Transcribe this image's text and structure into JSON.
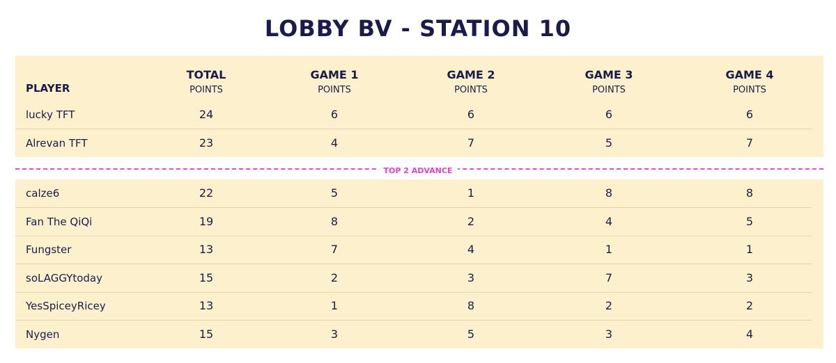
{
  "title": "LOBBY BV - STATION 10",
  "table": {
    "header": {
      "player": "PLAYER",
      "columns": [
        {
          "title": "TOTAL",
          "subtitle": "POINTS"
        },
        {
          "title": "GAME 1",
          "subtitle": "POINTS"
        },
        {
          "title": "GAME 2",
          "subtitle": "POINTS"
        },
        {
          "title": "GAME 3",
          "subtitle": "POINTS"
        },
        {
          "title": "GAME 4",
          "subtitle": "POINTS"
        }
      ]
    },
    "advancing_rows": [
      [
        "lucky TFT",
        24,
        6,
        6,
        6,
        6
      ],
      [
        "Alrevan TFT",
        23,
        4,
        7,
        5,
        7
      ]
    ],
    "divider": "TOP 2 ADVANCE",
    "other_rows": [
      [
        "calze6",
        22,
        5,
        1,
        8,
        8
      ],
      [
        "Fan The QiQi",
        19,
        8,
        2,
        4,
        5
      ],
      [
        "Fungster",
        13,
        7,
        4,
        1,
        1
      ],
      [
        "soLAGGYtoday",
        15,
        2,
        3,
        7,
        3
      ],
      [
        "YesSpiceyRicey",
        13,
        1,
        8,
        2,
        2
      ],
      [
        "Nygen",
        15,
        3,
        5,
        3,
        4
      ]
    ]
  }
}
